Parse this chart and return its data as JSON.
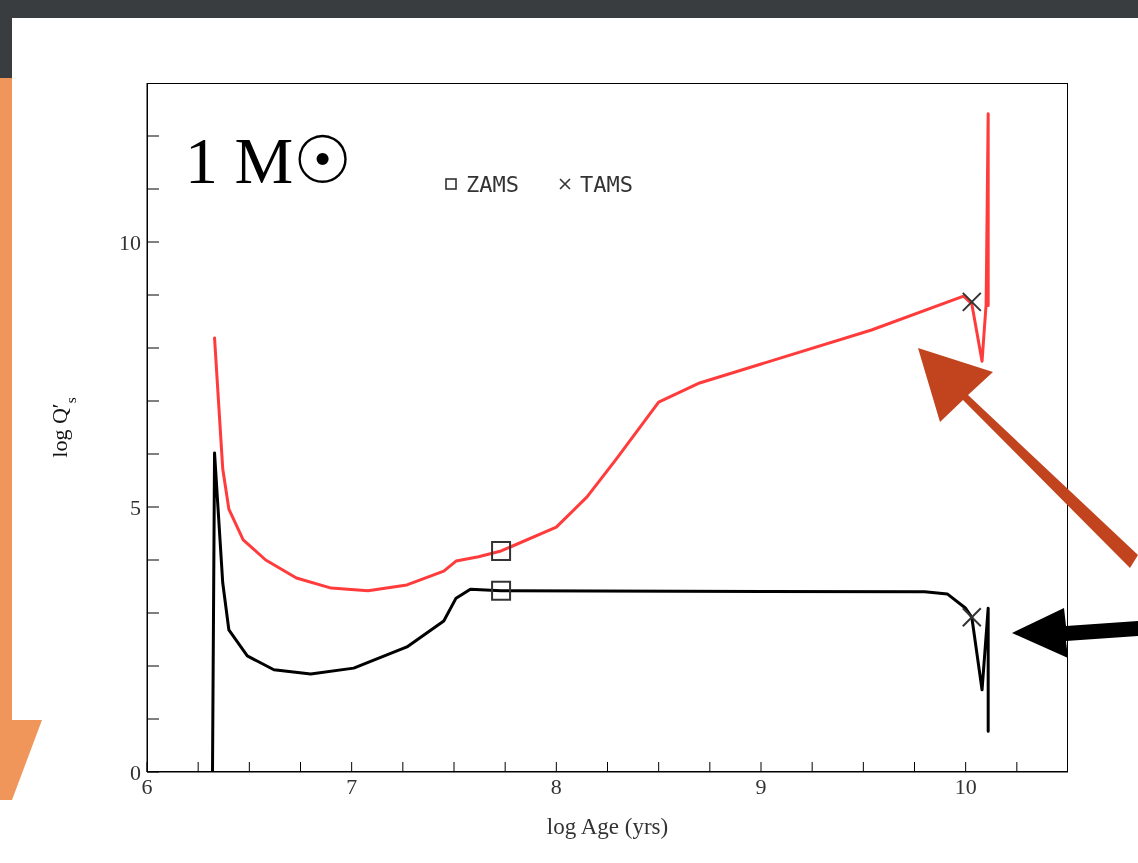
{
  "chart_data": {
    "type": "line",
    "xlabel": "log Age (yrs)",
    "ylabel": "log Q′$_{s}$",
    "annotations": [
      "1 M☉"
    ],
    "xlim": [
      6,
      10.5
    ],
    "ylim": [
      0,
      13
    ],
    "xticks": [
      6,
      {
        "value": 6.25,
        "label": null
      },
      {
        "value": 6.5,
        "label": null
      },
      {
        "value": 6.75,
        "label": null
      },
      7,
      {
        "value": 7.25,
        "label": null
      },
      {
        "value": 7.5,
        "label": null
      },
      {
        "value": 7.75,
        "label": null
      },
      8,
      {
        "value": 8.25,
        "label": null
      },
      {
        "value": 8.5,
        "label": null
      },
      {
        "value": 8.75,
        "label": null
      },
      9,
      {
        "value": 9.25,
        "label": null
      },
      {
        "value": 9.5,
        "label": null
      },
      {
        "value": 9.75,
        "label": null
      },
      10,
      {
        "value": 10.25,
        "label": null
      }
    ],
    "yticks": [
      0,
      {
        "value": 1,
        "label": null
      },
      {
        "value": 2,
        "label": null
      },
      {
        "value": 3,
        "label": null
      },
      {
        "value": 4,
        "label": null
      },
      5,
      {
        "value": 6,
        "label": null
      },
      {
        "value": 7,
        "label": null
      },
      {
        "value": 8,
        "label": null
      },
      {
        "value": 9,
        "label": null
      },
      10,
      {
        "value": 11,
        "label": null
      },
      {
        "value": 12,
        "label": null
      }
    ],
    "legend": "top",
    "line_style": "solid",
    "series": [
      {
        "color": "#ff3b3b",
        "x": [
          6.33,
          6.37,
          6.4,
          6.47,
          6.58,
          6.73,
          6.9,
          7.08,
          7.27,
          7.45,
          7.51,
          7.62,
          7.73,
          8.0,
          8.15,
          8.29,
          8.5,
          8.7,
          9.54,
          9.99,
          10.03,
          10.08,
          10.1,
          10.11,
          10.11
        ],
        "values": [
          8.19,
          5.72,
          4.96,
          4.38,
          4.0,
          3.66,
          3.47,
          3.42,
          3.53,
          3.79,
          3.98,
          4.06,
          4.17,
          4.62,
          5.19,
          5.89,
          6.98,
          7.34,
          8.34,
          8.98,
          8.83,
          7.75,
          8.83,
          12.42,
          8.8
        ]
      },
      {
        "color": "#000000",
        "x": [
          6.32,
          6.33,
          6.37,
          6.4,
          6.49,
          6.62,
          6.8,
          7.01,
          7.27,
          7.45,
          7.51,
          7.58,
          7.73,
          9.8,
          9.91,
          10.0,
          10.03,
          10.08,
          10.11,
          10.11
        ],
        "values": [
          0,
          6.02,
          3.57,
          2.68,
          2.19,
          1.93,
          1.85,
          1.96,
          2.36,
          2.85,
          3.28,
          3.45,
          3.42,
          3.4,
          3.36,
          3.09,
          2.92,
          1.55,
          3.09,
          0.77
        ]
      },
      {
        "type": "scatter",
        "name": "ZAMS",
        "marker": "square",
        "color": "#333333",
        "x": [
          7.73,
          7.73
        ],
        "values": [
          4.17,
          3.42
        ]
      },
      {
        "type": "scatter",
        "name": "TAMS",
        "marker": "cross",
        "color": "#333333",
        "x": [
          10.03,
          10.03
        ],
        "values": [
          8.87,
          2.92
        ]
      }
    ]
  }
}
